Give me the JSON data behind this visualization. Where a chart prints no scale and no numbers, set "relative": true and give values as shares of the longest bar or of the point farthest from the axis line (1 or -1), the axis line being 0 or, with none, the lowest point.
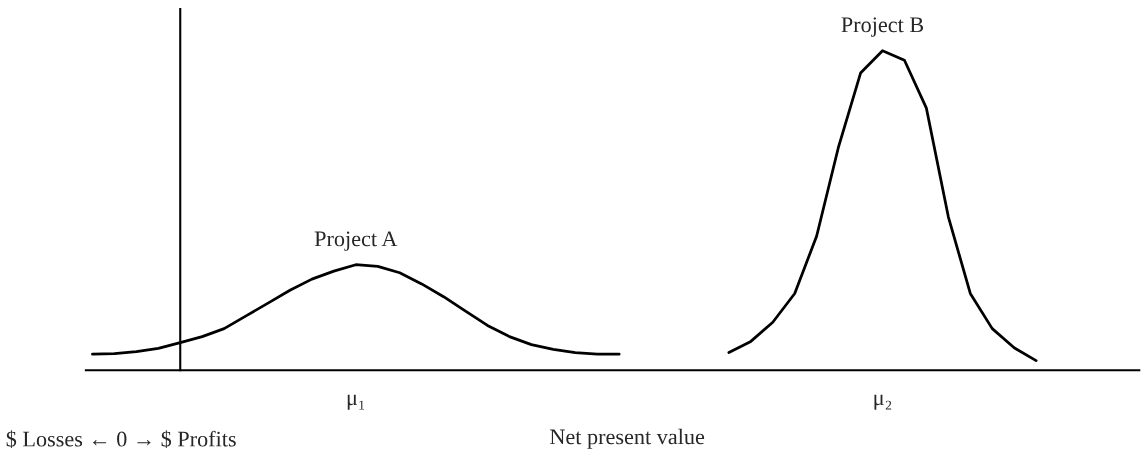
{
  "chart_data": {
    "type": "line",
    "relative": true,
    "xlabel": "Net present value",
    "categories": [
      null,
      null,
      null,
      null,
      null,
      null,
      null,
      null,
      null,
      null,
      null,
      null,
      "μ₁",
      null,
      null,
      null,
      null,
      null,
      null,
      null,
      null,
      null,
      null,
      null,
      null,
      null,
      null,
      null,
      null,
      null,
      null,
      null,
      null,
      null,
      null,
      null,
      "μ₂",
      null,
      null,
      null,
      null,
      null,
      null,
      null,
      null,
      null,
      null,
      null
    ],
    "series": [
      {
        "name": "Project A",
        "color": "#000000",
        "values": [
          0.05,
          0.052,
          0.058,
          0.068,
          0.086,
          0.105,
          0.13,
          0.17,
          0.21,
          0.25,
          0.285,
          0.31,
          0.33,
          0.325,
          0.305,
          0.27,
          0.23,
          0.185,
          0.14,
          0.105,
          0.08,
          0.065,
          0.055,
          0.05,
          0.05,
          null,
          null,
          null,
          null,
          null,
          null,
          null,
          null,
          null,
          null,
          null,
          null,
          null,
          null,
          null,
          null,
          null,
          null,
          null,
          null,
          null,
          null,
          null
        ]
      },
      {
        "name": "Project B",
        "color": "#000000",
        "values": [
          null,
          null,
          null,
          null,
          null,
          null,
          null,
          null,
          null,
          null,
          null,
          null,
          null,
          null,
          null,
          null,
          null,
          null,
          null,
          null,
          null,
          null,
          null,
          null,
          null,
          null,
          null,
          null,
          null,
          0.055,
          0.09,
          0.15,
          0.24,
          0.42,
          0.7,
          0.93,
          1.0,
          0.97,
          0.82,
          0.48,
          0.24,
          0.13,
          0.07,
          0.03,
          null,
          null,
          null,
          null
        ]
      }
    ],
    "annotations": [
      "$ Losses ← 0 → $ Profits"
    ],
    "legend": false,
    "line_style": "solid",
    "marker": "none",
    "tick_labels": "x"
  }
}
